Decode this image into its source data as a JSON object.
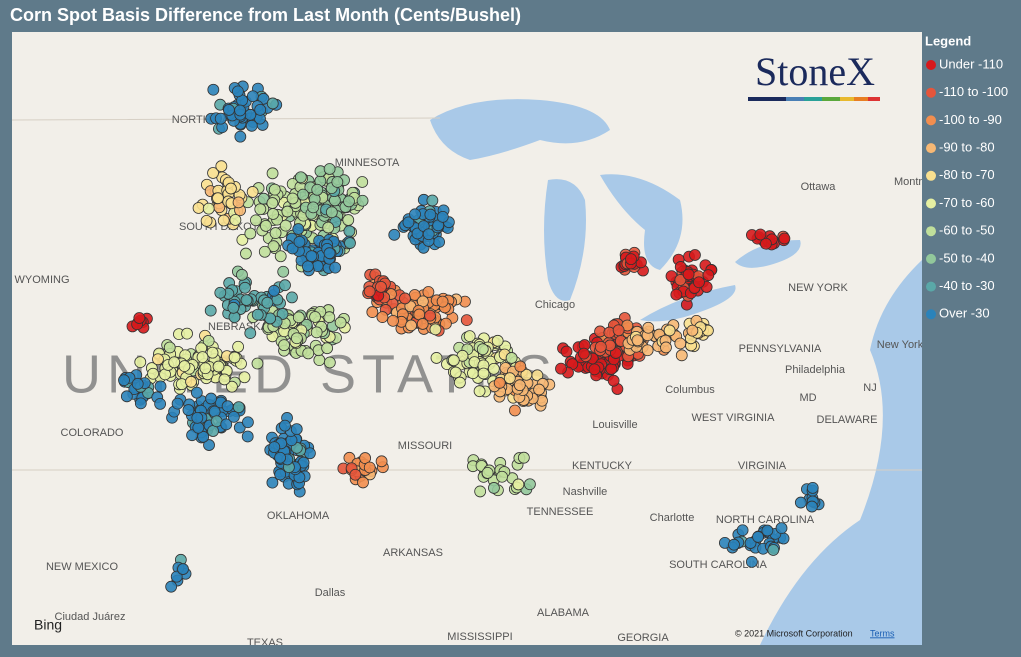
{
  "title": "Corn Spot Basis Difference from Last Month (Cents/Bushel)",
  "legend": {
    "title": "Legend",
    "items": [
      {
        "label": "Under -110",
        "color": "#d7191c"
      },
      {
        "label": "-110 to -100",
        "color": "#e5553b"
      },
      {
        "label": "-100 to -90",
        "color": "#f28e4f"
      },
      {
        "label": "-90 to -80",
        "color": "#f7b874"
      },
      {
        "label": "-80 to -70",
        "color": "#f9e08f"
      },
      {
        "label": "-70 to -60",
        "color": "#e6f0a2"
      },
      {
        "label": "-60 to -50",
        "color": "#c0df9b"
      },
      {
        "label": "-50 to -40",
        "color": "#92c89b"
      },
      {
        "label": "-40 to -30",
        "color": "#5aa8a8"
      },
      {
        "label": "Over -30",
        "color": "#2b83ba"
      }
    ]
  },
  "logo": "StoneX",
  "map_labels": [
    "NORTH DAKOTA",
    "MINNESOTA",
    "SOUTH DAKOTA",
    "WYOMING",
    "NEBRASKA",
    "COLORADO",
    "MISSOURI",
    "KENTUCKY",
    "TENNESSEE",
    "OKLAHOMA",
    "ARKANSAS",
    "NEW MEXICO",
    "TEXAS",
    "MISSISSIPPI",
    "ALABAMA",
    "GEORGIA",
    "WEST VIRGINIA",
    "VIRGINIA",
    "PENNSYLVANIA",
    "NEW YORK",
    "Ottawa",
    "Chicago",
    "Louisville",
    "Nashville",
    "Columbus",
    "Philadelphia",
    "Dallas",
    "Charlotte",
    "Ciudad Juárez",
    "NORTH CAROLINA",
    "SOUTH CAROLINA",
    "DELAWARE",
    "MD",
    "NJ",
    "New York",
    "Montr"
  ],
  "country_label": "UNITED STATES",
  "attribution": {
    "provider": "Bing",
    "copyright": "© 2021 Microsoft Corporation",
    "terms": "Terms"
  }
}
